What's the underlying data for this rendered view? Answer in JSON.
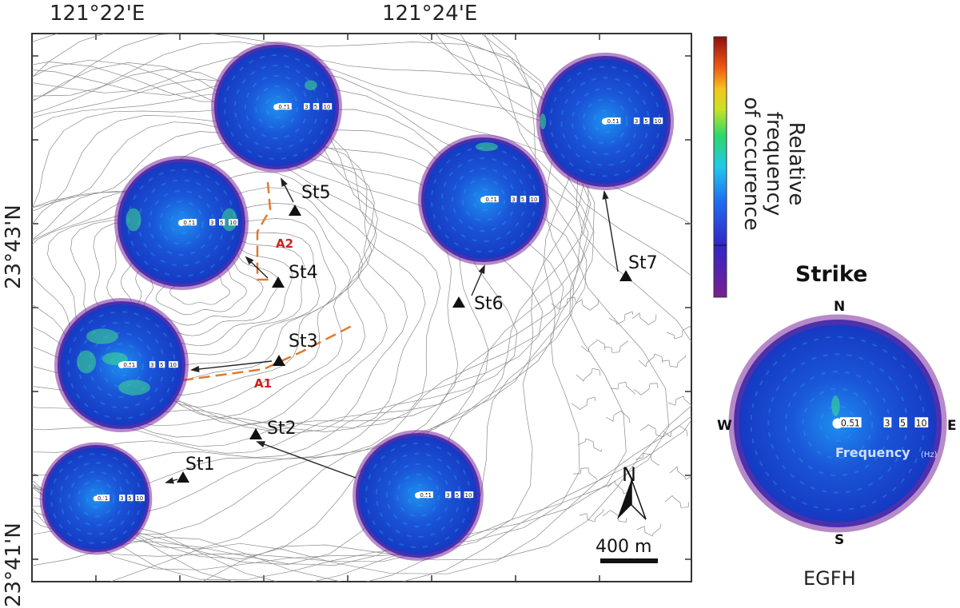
{
  "axes": {
    "lon_labels": [
      "121°22'E",
      "121°24'E"
    ],
    "lat_labels": [
      "23°43'N",
      "23°41'N"
    ]
  },
  "stations": [
    {
      "name": "St1"
    },
    {
      "name": "St2"
    },
    {
      "name": "St3"
    },
    {
      "name": "St4"
    },
    {
      "name": "St5"
    },
    {
      "name": "St6"
    },
    {
      "name": "St7"
    }
  ],
  "areas": [
    "A1",
    "A2"
  ],
  "polar_ticks": [
    "0.5",
    "1",
    "3",
    "5",
    "10"
  ],
  "north_arrow": "N",
  "scale_bar": "400 m",
  "colorbar": {
    "title": "Relative frequency of occurence",
    "title_lines": [
      "Relative frequency",
      "of occurence"
    ]
  },
  "legend": {
    "title": "Strike",
    "directions": {
      "north": "N",
      "south": "S",
      "west": "W",
      "east": "E"
    },
    "axis_label": "Frequency",
    "axis_unit": "(Hz)",
    "caption": "EGFH"
  },
  "colors": {
    "arrow": "#222222",
    "fault": "#e07a2f",
    "area_label": "#d02020",
    "contour": "#8a8a8a"
  }
}
